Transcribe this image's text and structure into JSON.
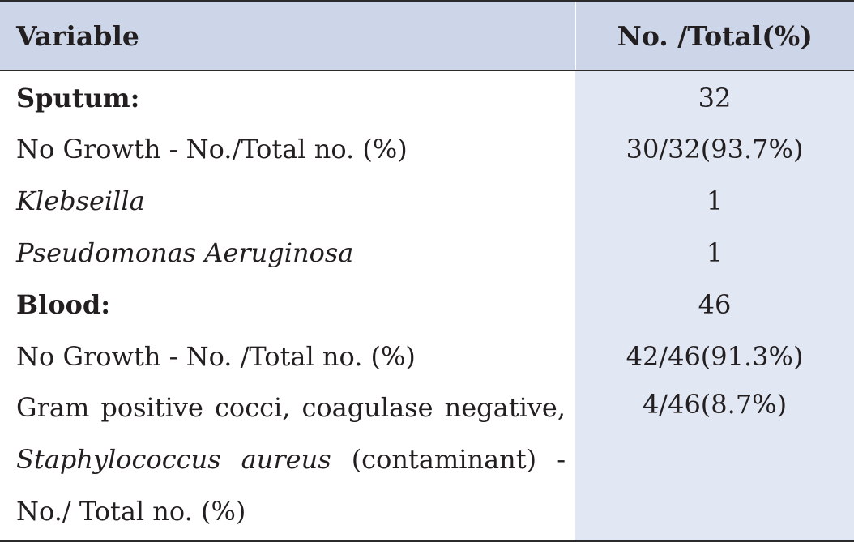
{
  "header": {
    "variable": "Variable",
    "value": "No. /Total(%)"
  },
  "rows": [
    {
      "label": "Sputum:",
      "value": "32"
    },
    {
      "label": "No Growth - No./Total no. (%)",
      "value": "30/32(93.7%)"
    },
    {
      "label": "Klebseilla",
      "value": "1"
    },
    {
      "label": "Pseudomonas Aeruginosa",
      "value": "1"
    },
    {
      "label": "Blood:",
      "value": "46"
    },
    {
      "label": "No Growth - No. /Total no. (%)",
      "value": "42/46(91.3%)"
    },
    {
      "label_part1": "Gram positive cocci, coagulase negative,",
      "label_italic": "Staphylococcus aureus",
      "label_part2": " (contaminant) - No./ Total no. (%)",
      "value": "4/46(8.7%)"
    }
  ],
  "colors": {
    "header_bg": "#cdd6e8",
    "value_column_bg": "#e1e7f3",
    "rule": "#2b2b2b",
    "text": "#231f20"
  }
}
